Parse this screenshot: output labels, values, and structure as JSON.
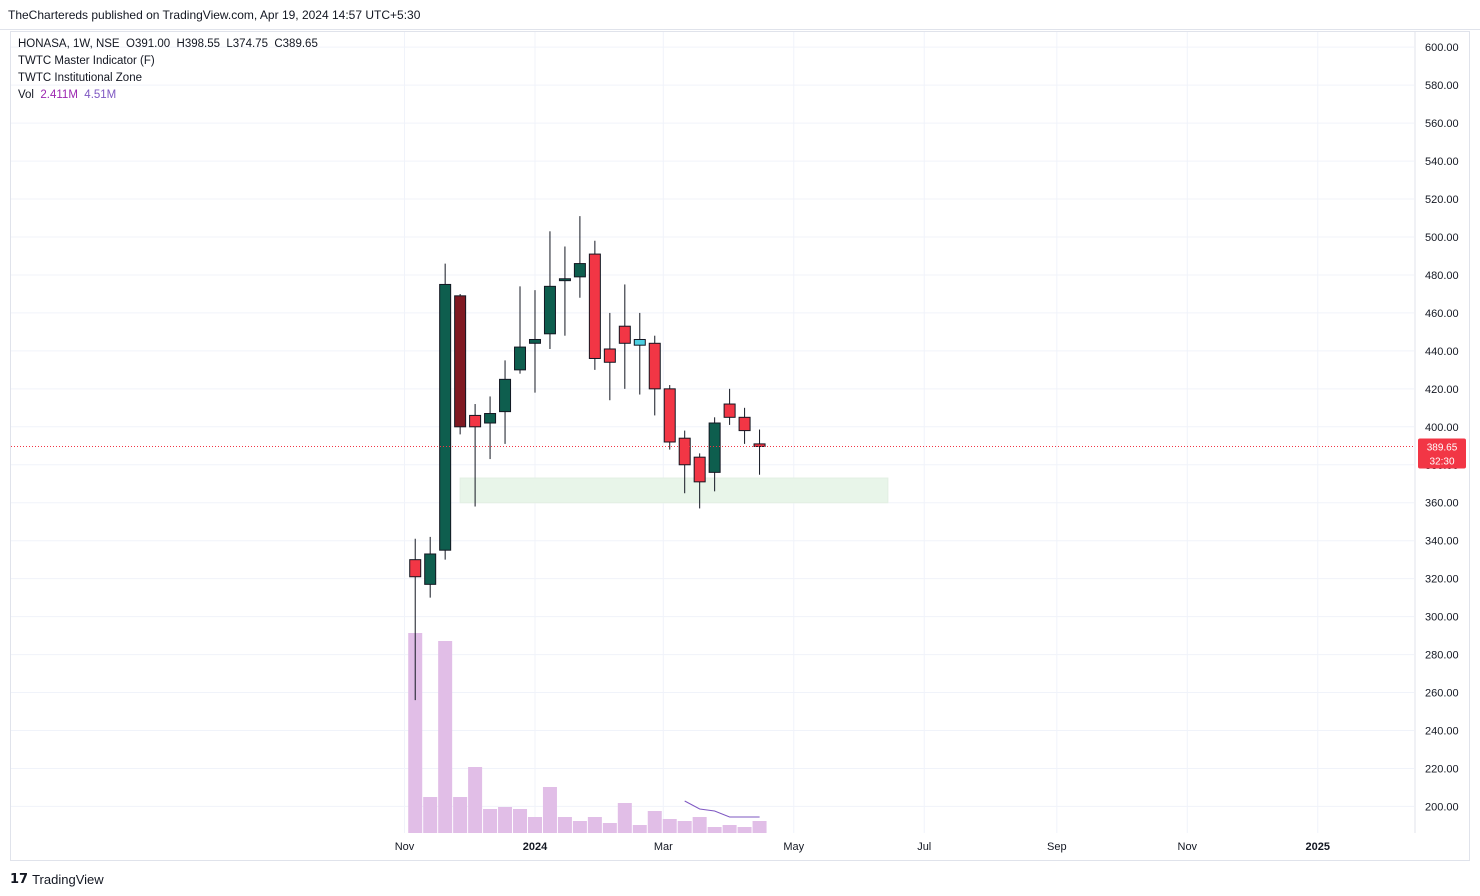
{
  "header": {
    "publish_text": "TheChartereds published on TradingView.com, Apr 19, 2024 14:57 UTC+5:30"
  },
  "legend": {
    "symbol": "HONASA, 1W, NSE",
    "open": "O391.00",
    "high": "H398.55",
    "low": "L374.75",
    "close": "C389.65",
    "indicator1": "TWTC Master Indicator (F)",
    "indicator2": "TWTC Institutional Zone",
    "vol_label": "Vol",
    "vol_value": "2.411M",
    "vol_ma": "4.51M"
  },
  "price_tag": {
    "price": "389.65",
    "countdown": "32:30"
  },
  "footer": {
    "brand": "TradingView",
    "logo_icon": "tradingview-logo-icon"
  },
  "colors": {
    "up": "#0e5e4e",
    "down": "#f23645",
    "dark_down": "#801922",
    "cyan_up": "#4dd0e1",
    "volume": "#e1bee7",
    "vol_ma": "#7e57c2",
    "zone": "#e8f5e9",
    "price_line": "#f23645"
  },
  "chart_data": {
    "type": "candlestick",
    "symbol": "HONASA",
    "interval": "1W",
    "exchange": "NSE",
    "x_tick_labels": [
      "Nov",
      "2024",
      "Mar",
      "May",
      "Jul",
      "Sep",
      "Nov",
      "2025"
    ],
    "x_tick_dates": [
      "2023-11-01",
      "2024-01-01",
      "2024-03-01",
      "2024-05-01",
      "2024-07-01",
      "2024-09-01",
      "2024-11-01",
      "2025-01-01"
    ],
    "x_range": [
      "2023-05-01",
      "2025-02-15"
    ],
    "y_tick_labels": [
      "200.00",
      "220.00",
      "240.00",
      "260.00",
      "280.00",
      "300.00",
      "320.00",
      "340.00",
      "360.00",
      "380.00",
      "400.00",
      "420.00",
      "440.00",
      "460.00",
      "480.00",
      "500.00",
      "520.00",
      "540.00",
      "560.00",
      "580.00",
      "600.00"
    ],
    "ylim": [
      186,
      608
    ],
    "grid": true,
    "candles": [
      {
        "date": "2023-11-06",
        "o": 330,
        "h": 341,
        "l": 256,
        "c": 321
      },
      {
        "date": "2023-11-13",
        "o": 317,
        "h": 342,
        "l": 310,
        "c": 333
      },
      {
        "date": "2023-11-20",
        "o": 335,
        "h": 486,
        "l": 330,
        "c": 475
      },
      {
        "date": "2023-11-27",
        "o": 469,
        "h": 470,
        "l": 396,
        "c": 400,
        "color": "dark_down"
      },
      {
        "date": "2023-12-04",
        "o": 406,
        "h": 412,
        "l": 358,
        "c": 400
      },
      {
        "date": "2023-12-11",
        "o": 402,
        "h": 416,
        "l": 383,
        "c": 407
      },
      {
        "date": "2023-12-18",
        "o": 408,
        "h": 435,
        "l": 391,
        "c": 425
      },
      {
        "date": "2023-12-25",
        "o": 430,
        "h": 474,
        "l": 428,
        "c": 442
      },
      {
        "date": "2024-01-01",
        "o": 444,
        "h": 472,
        "l": 418,
        "c": 446
      },
      {
        "date": "2024-01-08",
        "o": 449,
        "h": 503,
        "l": 441,
        "c": 474
      },
      {
        "date": "2024-01-15",
        "o": 477,
        "h": 495,
        "l": 448,
        "c": 478
      },
      {
        "date": "2024-01-22",
        "o": 479,
        "h": 511,
        "l": 468,
        "c": 486
      },
      {
        "date": "2024-01-29",
        "o": 491,
        "h": 498,
        "l": 430,
        "c": 436
      },
      {
        "date": "2024-02-05",
        "o": 441,
        "h": 460,
        "l": 414,
        "c": 434
      },
      {
        "date": "2024-02-12",
        "o": 453,
        "h": 475,
        "l": 420,
        "c": 444
      },
      {
        "date": "2024-02-19",
        "o": 443,
        "h": 460,
        "l": 417,
        "c": 446,
        "color": "cyan_up"
      },
      {
        "date": "2024-02-26",
        "o": 444,
        "h": 448,
        "l": 406,
        "c": 420
      },
      {
        "date": "2024-03-04",
        "o": 420,
        "h": 422,
        "l": 388,
        "c": 392
      },
      {
        "date": "2024-03-11",
        "o": 394,
        "h": 398,
        "l": 365,
        "c": 380
      },
      {
        "date": "2024-03-18",
        "o": 384,
        "h": 386,
        "l": 357,
        "c": 371
      },
      {
        "date": "2024-03-25",
        "o": 376,
        "h": 405,
        "l": 366,
        "c": 402
      },
      {
        "date": "2024-04-01",
        "o": 412,
        "h": 420,
        "l": 401,
        "c": 405
      },
      {
        "date": "2024-04-08",
        "o": 405,
        "h": 410,
        "l": 391,
        "c": 398
      },
      {
        "date": "2024-04-15",
        "o": 391,
        "h": 398.55,
        "l": 374.75,
        "c": 389.65
      }
    ],
    "volume_relative": [
      1.0,
      0.18,
      0.96,
      0.18,
      0.33,
      0.12,
      0.13,
      0.12,
      0.08,
      0.23,
      0.08,
      0.06,
      0.08,
      0.05,
      0.15,
      0.04,
      0.11,
      0.07,
      0.06,
      0.08,
      0.03,
      0.04,
      0.03,
      0.06
    ],
    "volume_ma_relative": [
      null,
      null,
      null,
      null,
      null,
      null,
      null,
      null,
      null,
      null,
      null,
      null,
      null,
      null,
      null,
      null,
      null,
      null,
      0.16,
      0.12,
      0.11,
      0.08,
      0.08,
      0.08
    ],
    "institutional_zone": {
      "from_date": "2023-11-27",
      "to_date": "2024-06-14",
      "low": 360,
      "high": 373
    },
    "last_price": 389.65
  }
}
